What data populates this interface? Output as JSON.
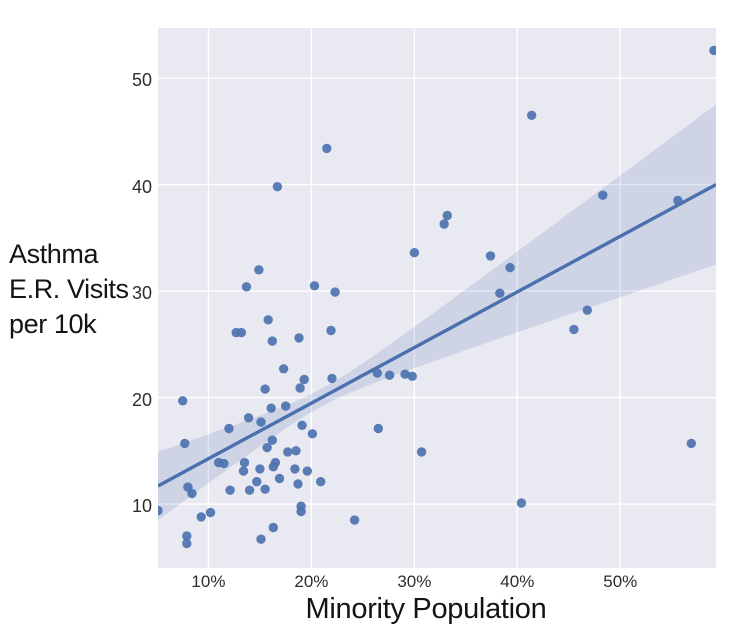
{
  "chart_data": {
    "type": "scatter",
    "title": "",
    "xlabel": "Minority Population",
    "ylabel_lines": [
      "Asthma",
      "E.R. Visits",
      "per 10k"
    ],
    "xlim": [
      5.1,
      59.3
    ],
    "ylim": [
      4.0,
      54.7
    ],
    "grid": true,
    "legend": "none",
    "x_ticks": [
      {
        "v": 10,
        "label": "10%"
      },
      {
        "v": 20,
        "label": "20%"
      },
      {
        "v": 30,
        "label": "30%"
      },
      {
        "v": 40,
        "label": "40%"
      },
      {
        "v": 50,
        "label": "50%"
      }
    ],
    "y_ticks": [
      {
        "v": 10,
        "label": "10"
      },
      {
        "v": 20,
        "label": "20"
      },
      {
        "v": 30,
        "label": "30"
      },
      {
        "v": 40,
        "label": "40"
      },
      {
        "v": 50,
        "label": "50"
      }
    ],
    "points": [
      [
        59.1,
        52.6
      ],
      [
        41.4,
        46.5
      ],
      [
        21.5,
        43.4
      ],
      [
        16.7,
        39.8
      ],
      [
        48.3,
        39.0
      ],
      [
        55.6,
        38.5
      ],
      [
        33.2,
        37.1
      ],
      [
        32.9,
        36.3
      ],
      [
        30.0,
        33.6
      ],
      [
        37.4,
        33.3
      ],
      [
        39.3,
        32.2
      ],
      [
        14.9,
        32.0
      ],
      [
        13.7,
        30.4
      ],
      [
        20.3,
        30.5
      ],
      [
        22.3,
        29.9
      ],
      [
        38.3,
        29.8
      ],
      [
        46.8,
        28.2
      ],
      [
        15.8,
        27.3
      ],
      [
        12.7,
        26.1
      ],
      [
        13.2,
        26.1
      ],
      [
        16.2,
        25.3
      ],
      [
        18.8,
        25.6
      ],
      [
        21.9,
        26.3
      ],
      [
        45.5,
        26.4
      ],
      [
        17.3,
        22.7
      ],
      [
        22.0,
        21.8
      ],
      [
        26.4,
        22.3
      ],
      [
        27.6,
        22.1
      ],
      [
        29.1,
        22.2
      ],
      [
        29.8,
        22.0
      ],
      [
        19.3,
        21.7
      ],
      [
        18.9,
        20.9
      ],
      [
        15.5,
        20.8
      ],
      [
        7.5,
        19.7
      ],
      [
        16.1,
        19.0
      ],
      [
        17.5,
        19.2
      ],
      [
        13.9,
        18.1
      ],
      [
        15.1,
        17.7
      ],
      [
        12.0,
        17.1
      ],
      [
        19.1,
        17.4
      ],
      [
        26.5,
        17.1
      ],
      [
        20.1,
        16.6
      ],
      [
        16.2,
        16.0
      ],
      [
        15.7,
        15.3
      ],
      [
        7.7,
        15.7
      ],
      [
        17.7,
        14.9
      ],
      [
        18.5,
        15.0
      ],
      [
        30.7,
        14.9
      ],
      [
        56.9,
        15.7
      ],
      [
        13.5,
        13.9
      ],
      [
        13.4,
        13.1
      ],
      [
        15.0,
        13.3
      ],
      [
        16.5,
        13.9
      ],
      [
        16.3,
        13.5
      ],
      [
        18.4,
        13.3
      ],
      [
        19.6,
        13.1
      ],
      [
        11.0,
        13.9
      ],
      [
        11.5,
        13.8
      ],
      [
        14.7,
        12.1
      ],
      [
        16.9,
        12.4
      ],
      [
        18.7,
        11.9
      ],
      [
        20.9,
        12.1
      ],
      [
        12.1,
        11.3
      ],
      [
        14.0,
        11.3
      ],
      [
        15.5,
        11.4
      ],
      [
        8.0,
        11.6
      ],
      [
        8.4,
        11.0
      ],
      [
        19.0,
        9.8
      ],
      [
        19.0,
        9.3
      ],
      [
        9.3,
        8.8
      ],
      [
        10.2,
        9.2
      ],
      [
        5.1,
        9.4
      ],
      [
        24.2,
        8.5
      ],
      [
        40.4,
        10.1
      ],
      [
        16.3,
        7.8
      ],
      [
        15.1,
        6.7
      ],
      [
        7.9,
        7.0
      ],
      [
        7.9,
        6.3
      ]
    ],
    "trend_line": {
      "x_start": 5.1,
      "y_start": 11.7,
      "x_end": 59.3,
      "y_end": 40.0
    },
    "confidence_band": {
      "center_x": 21.0,
      "base": 0.7,
      "growth": 0.038
    },
    "marker": {
      "radius": 4.7
    },
    "colors": {
      "page_bg": "#ffffff",
      "plot_bg": "#e9e9f1",
      "gridline": "#ffffff",
      "point": "#4c72b0",
      "point_opacity": 0.92,
      "trend": "#4a71ae",
      "band": "#4c72b0",
      "band_opacity": 0.17,
      "tick_label": "#2d2d2d",
      "axis_label": "#141414"
    }
  }
}
